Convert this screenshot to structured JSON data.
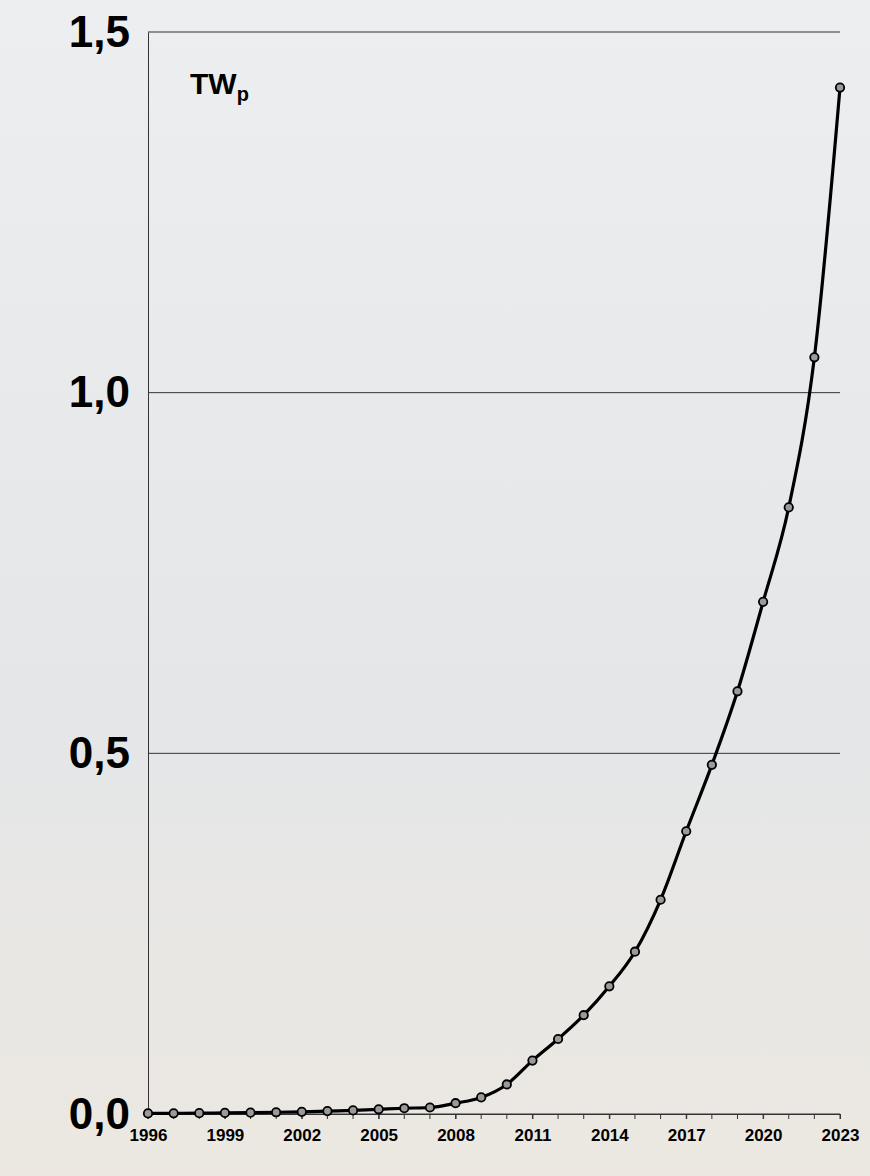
{
  "chart_data": {
    "type": "line",
    "title": "TWp",
    "x": [
      1996,
      1997,
      1998,
      1999,
      2000,
      2001,
      2002,
      2003,
      2004,
      2005,
      2006,
      2007,
      2008,
      2009,
      2010,
      2011,
      2012,
      2013,
      2014,
      2015,
      2016,
      2017,
      2018,
      2019,
      2020,
      2021,
      2022,
      2023
    ],
    "values": [
      0.0008,
      0.001,
      0.0012,
      0.0015,
      0.0019,
      0.0024,
      0.003,
      0.004,
      0.005,
      0.0065,
      0.008,
      0.009,
      0.015,
      0.023,
      0.041,
      0.074,
      0.104,
      0.137,
      0.177,
      0.225,
      0.297,
      0.392,
      0.484,
      0.586,
      0.71,
      0.841,
      1.049,
      1.423
    ],
    "color": "#000000",
    "marker": "circle",
    "grid": true,
    "xlim": [
      1996,
      2023
    ],
    "xticks": [
      1996,
      1999,
      2002,
      2005,
      2008,
      2011,
      2014,
      2017,
      2020,
      2023
    ],
    "ylim": [
      0,
      1.5
    ],
    "yticks": [
      {
        "value": 0,
        "label": "0,0"
      },
      {
        "value": 0.5,
        "label": "0,5"
      },
      {
        "value": 1,
        "label": "1,0"
      },
      {
        "value": 1.5,
        "label": "1,5"
      }
    ]
  }
}
